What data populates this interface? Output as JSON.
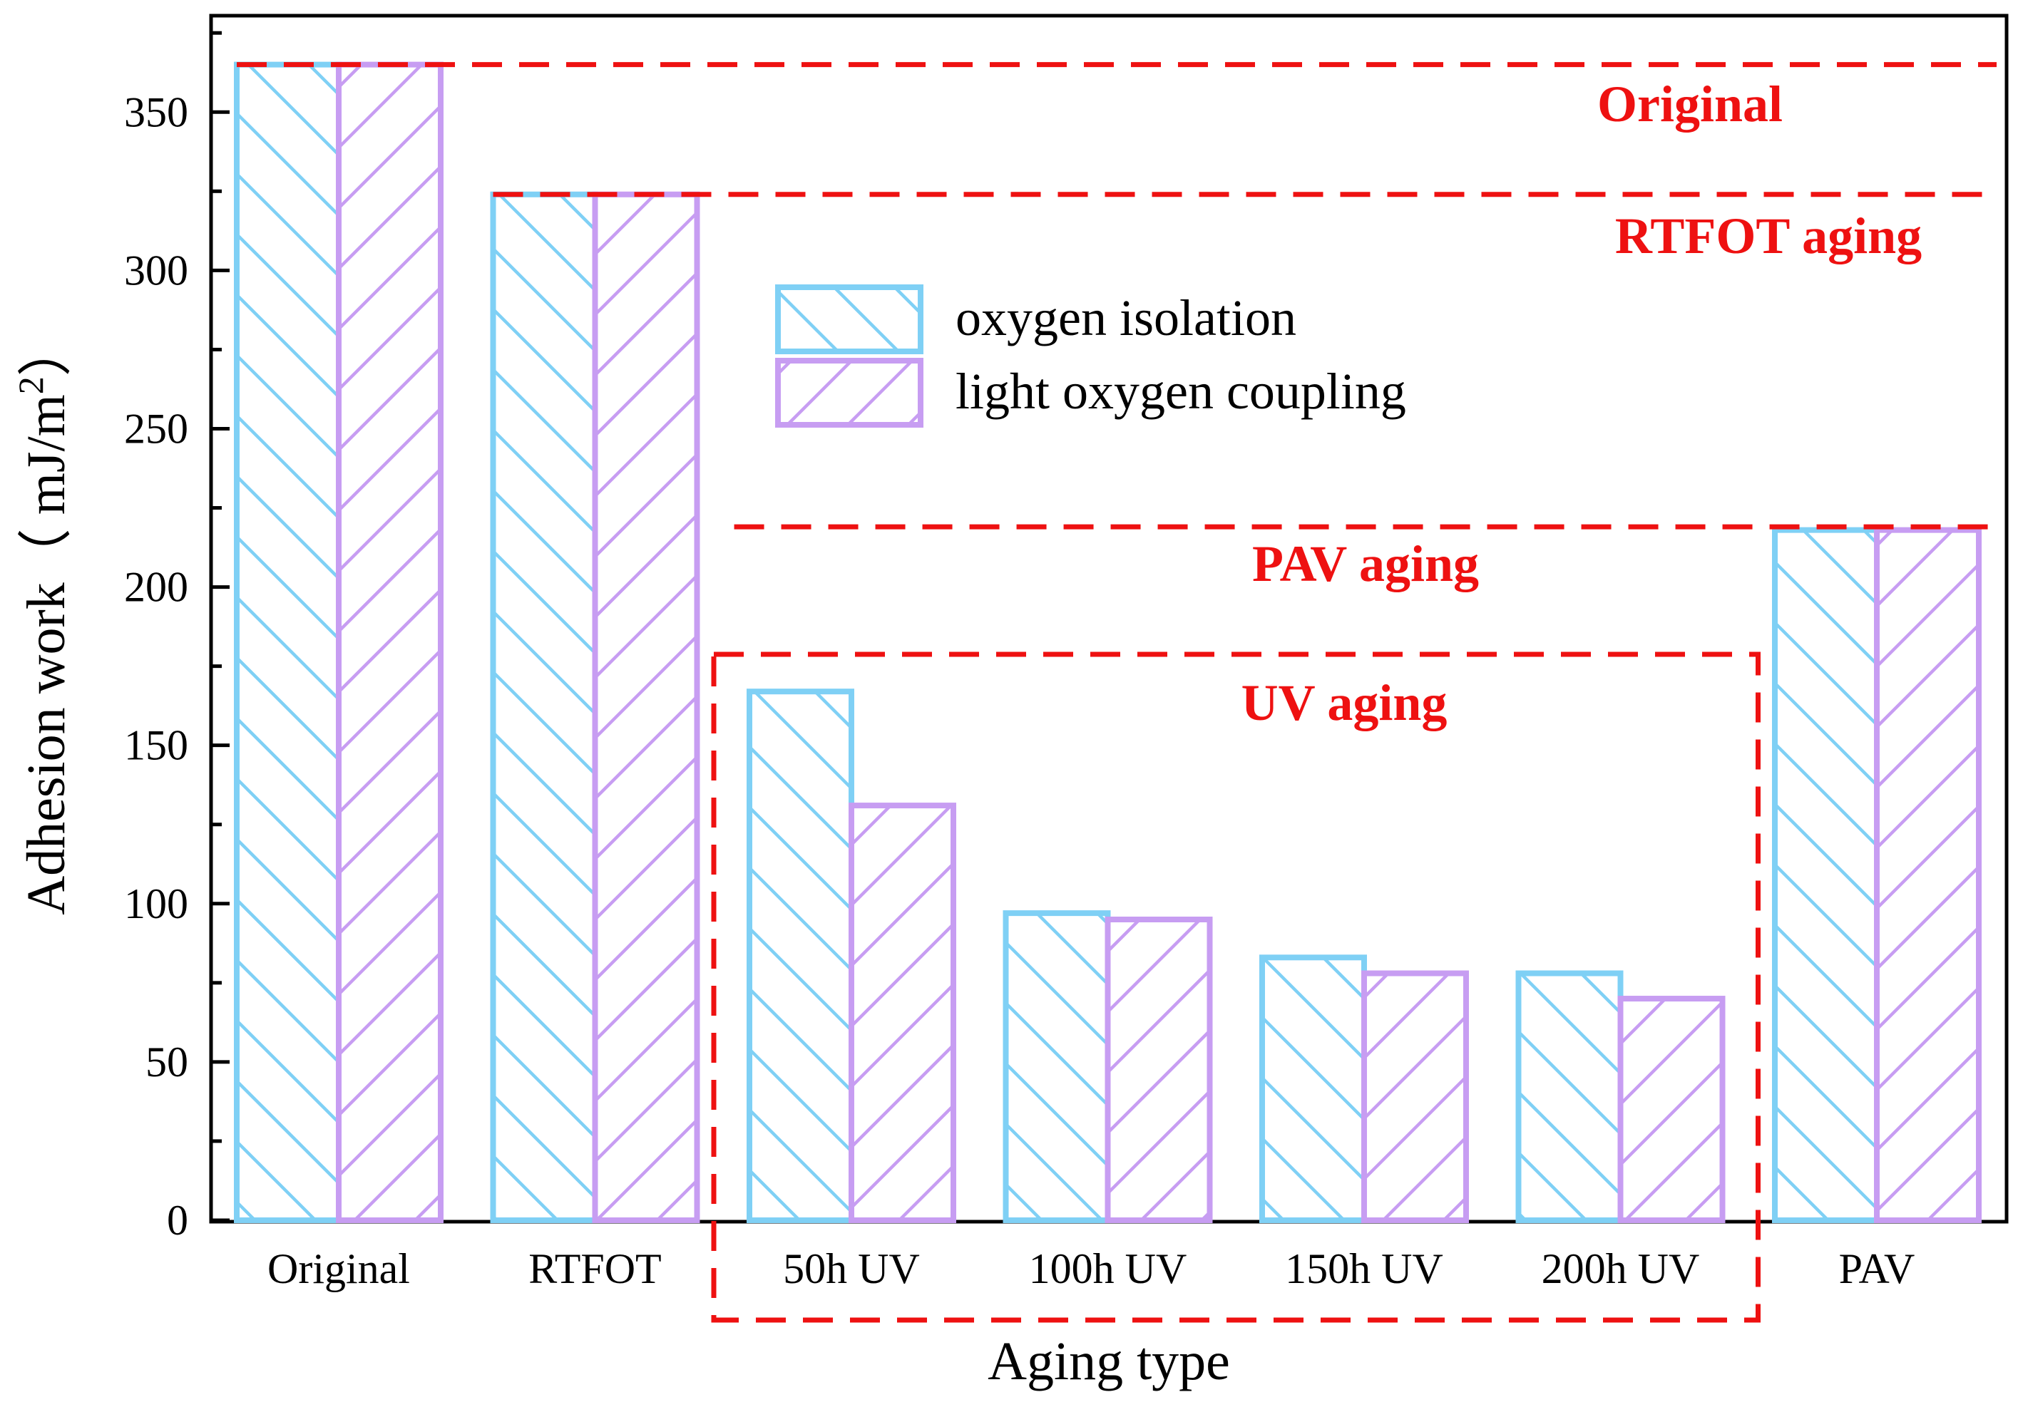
{
  "chart_data": {
    "type": "bar",
    "title": "",
    "xlabel": "Aging type",
    "ylabel": "Adhesion work（ mJ/m",
    "ylabel_sup": "2",
    "ylabel_close": "）",
    "ylim": [
      0,
      380
    ],
    "yticks": [
      0,
      50,
      100,
      150,
      200,
      250,
      300,
      350
    ],
    "categories": [
      "Original",
      "RTFOT",
      "50h UV",
      "100h UV",
      "150h UV",
      "200h UV",
      "PAV"
    ],
    "series": [
      {
        "name": "oxygen isolation",
        "color": "#7fd0f5",
        "hatch": "forward-diagonal",
        "values": [
          365,
          324,
          167,
          97,
          83,
          78,
          218
        ]
      },
      {
        "name": "light oxygen coupling",
        "color": "#c79df2",
        "hatch": "back-diagonal",
        "values": [
          365,
          324,
          131,
          95,
          78,
          70,
          218
        ]
      }
    ],
    "legend": {
      "position": "upper-center"
    },
    "annotations": {
      "color": "#ee1111",
      "reference_lines": [
        {
          "label": "Original",
          "value": 365
        },
        {
          "label": "RTFOT aging",
          "value": 324
        },
        {
          "label": "PAV aging",
          "value": 219
        }
      ],
      "box": {
        "label": "UV aging",
        "categories": [
          "50h UV",
          "100h UV",
          "150h UV",
          "200h UV"
        ]
      }
    }
  }
}
